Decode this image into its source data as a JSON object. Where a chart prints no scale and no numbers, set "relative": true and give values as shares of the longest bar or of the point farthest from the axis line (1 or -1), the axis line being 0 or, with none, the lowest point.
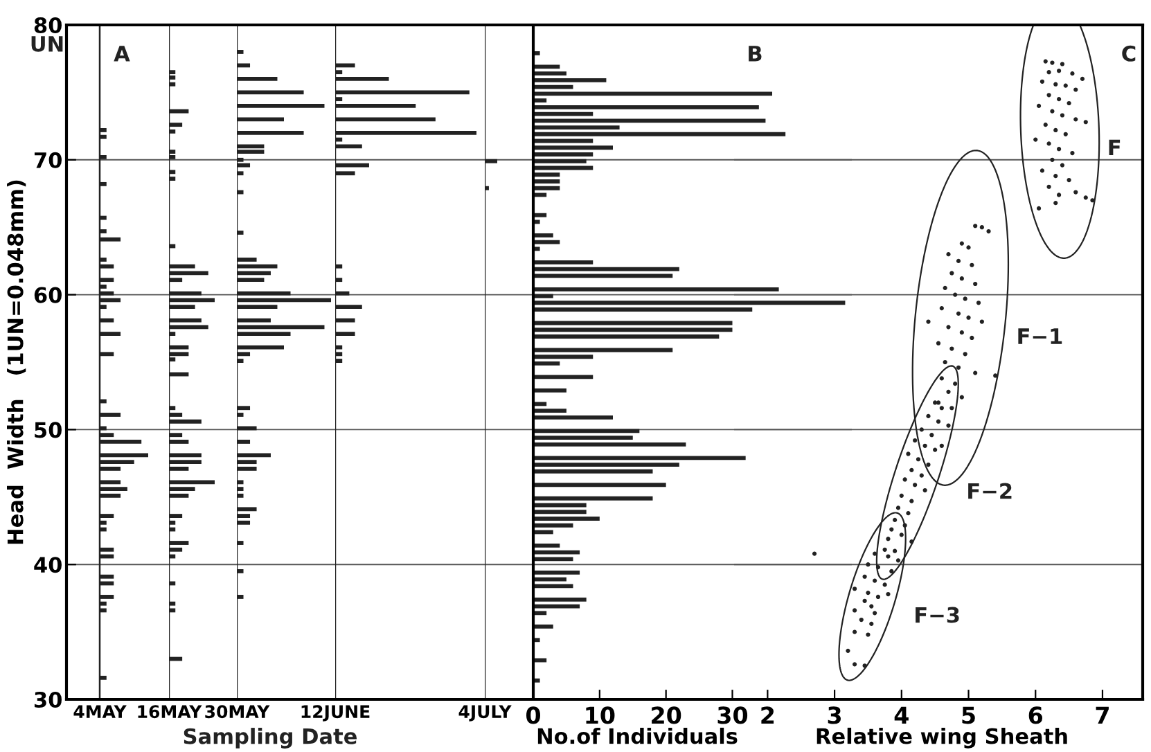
{
  "chart_data": [
    {
      "type": "bar",
      "orientation": "horizontal",
      "relative": true,
      "color": "#222222",
      "xlabel": "4MAY",
      "ylabel": "Head  Width   (1UN=0.048mm)",
      "ylim": [
        30,
        80
      ],
      "yticks": [
        30,
        40,
        50,
        60,
        70,
        80
      ],
      "grid": "y",
      "tick_labels": "y",
      "annotations": [
        "A",
        "Sampling Date",
        "UN"
      ],
      "x": [
        72.2,
        71.7,
        70.2,
        68.2,
        65.7,
        64.7,
        64.1,
        62.6,
        62.1,
        61.1,
        60.6,
        60.1,
        59.6,
        59.1,
        58.1,
        57.1,
        55.6,
        52.1,
        51.1,
        50.1,
        49.6,
        49.1,
        48.1,
        47.6,
        47.1,
        46.1,
        45.6,
        45.1,
        43.6,
        43.1,
        42.6,
        41.1,
        40.6,
        39.1,
        38.6,
        37.6,
        37.1,
        36.6,
        31.6
      ],
      "values": [
        0.14,
        0.14,
        0.14,
        0.14,
        0.14,
        0.14,
        0.43,
        0.14,
        0.29,
        0.29,
        0.14,
        0.29,
        0.43,
        0.14,
        0.29,
        0.43,
        0.29,
        0.14,
        0.43,
        0.14,
        0.29,
        0.86,
        1,
        0.71,
        0.43,
        0.43,
        0.57,
        0.43,
        0.29,
        0.14,
        0.14,
        0.29,
        0.29,
        0.29,
        0.29,
        0.29,
        0.14,
        0.14,
        0.14
      ]
    },
    {
      "type": "bar",
      "orientation": "horizontal",
      "relative": true,
      "color": "#222222",
      "xlabel": "16MAY",
      "ylim": [
        30,
        80
      ],
      "yticks": [
        30,
        40,
        50,
        60,
        70,
        80
      ],
      "grid": "y",
      "tick_labels": false,
      "x": [
        76.5,
        76.1,
        75.6,
        73.6,
        72.6,
        72.1,
        70.6,
        70.2,
        69.1,
        68.6,
        63.6,
        62.1,
        61.6,
        61.1,
        60.1,
        59.6,
        59.1,
        58.1,
        57.6,
        57.1,
        56.1,
        55.6,
        55.2,
        54.1,
        51.6,
        51.1,
        50.6,
        49.6,
        49.1,
        48.1,
        47.6,
        47.1,
        46.1,
        45.6,
        45.1,
        43.6,
        43.1,
        42.6,
        41.6,
        41.1,
        40.6,
        38.6,
        37.1,
        36.6,
        33.0
      ],
      "values": [
        0.14,
        0.14,
        0.14,
        0.43,
        0.29,
        0.14,
        0.14,
        0.14,
        0.14,
        0.14,
        0.14,
        0.57,
        0.86,
        0.29,
        0.71,
        1,
        0.57,
        0.71,
        0.86,
        0.14,
        0.43,
        0.43,
        0.14,
        0.43,
        0.14,
        0.29,
        0.71,
        0.29,
        0.43,
        0.71,
        0.71,
        0.43,
        1,
        0.57,
        0.43,
        0.29,
        0.14,
        0.14,
        0.43,
        0.29,
        0.14,
        0.14,
        0.14,
        0.14,
        0.29
      ]
    },
    {
      "type": "bar",
      "orientation": "horizontal",
      "relative": true,
      "color": "#222222",
      "xlabel": "30MAY",
      "ylim": [
        30,
        80
      ],
      "yticks": [
        30,
        40,
        50,
        60,
        70,
        80
      ],
      "grid": "y",
      "tick_labels": false,
      "x": [
        78.0,
        77.0,
        76.0,
        75.0,
        74.0,
        73.0,
        72.0,
        71.0,
        70.6,
        70.0,
        69.6,
        69.0,
        67.6,
        64.6,
        62.6,
        62.1,
        61.6,
        61.1,
        60.1,
        59.6,
        59.1,
        58.1,
        57.6,
        57.1,
        56.1,
        55.6,
        55.1,
        51.6,
        51.1,
        50.1,
        49.1,
        48.1,
        47.6,
        47.1,
        46.1,
        45.6,
        45.1,
        44.1,
        43.6,
        43.1,
        41.6,
        39.5,
        37.6
      ],
      "values": [
        0.07,
        0.14,
        0.43,
        0.71,
        0.93,
        0.5,
        0.71,
        0.29,
        0.29,
        0.07,
        0.14,
        0.07,
        0.07,
        0.07,
        0.21,
        0.43,
        0.36,
        0.29,
        0.57,
        1,
        0.43,
        0.36,
        0.93,
        0.57,
        0.5,
        0.14,
        0.07,
        0.14,
        0.07,
        0.21,
        0.14,
        0.36,
        0.21,
        0.21,
        0.07,
        0.07,
        0.07,
        0.21,
        0.14,
        0.14,
        0.07,
        0.07,
        0.07
      ]
    },
    {
      "type": "bar",
      "orientation": "horizontal",
      "relative": true,
      "color": "#222222",
      "xlabel": "12JUNE",
      "ylim": [
        30,
        80
      ],
      "yticks": [
        30,
        40,
        50,
        60,
        70,
        80
      ],
      "grid": "y",
      "tick_labels": false,
      "x": [
        77.0,
        76.5,
        76.0,
        75.0,
        74.5,
        74.0,
        73.0,
        72.0,
        71.5,
        71.0,
        69.6,
        69.0,
        62.1,
        61.1,
        60.1,
        59.1,
        58.1,
        57.1,
        56.1,
        55.6,
        55.1
      ],
      "values": [
        0.14,
        0.05,
        0.38,
        0.95,
        0.05,
        0.57,
        0.71,
        1,
        0.05,
        0.19,
        0.24,
        0.14,
        0.05,
        0.05,
        0.1,
        0.19,
        0.14,
        0.14,
        0.05,
        0.05,
        0.05
      ]
    },
    {
      "type": "bar",
      "orientation": "horizontal",
      "relative": true,
      "color": "#222222",
      "xlabel": "4JULY",
      "ylim": [
        30,
        80
      ],
      "yticks": [
        30,
        40,
        50,
        60,
        70,
        80
      ],
      "grid": "y",
      "tick_labels": false,
      "x": [
        69.9,
        67.9
      ],
      "values": [
        1,
        0.33
      ]
    },
    {
      "type": "bar",
      "orientation": "horizontal",
      "color": "#222222",
      "xlabel": "No.of Individuals",
      "xlim": [
        0,
        48
      ],
      "xticks": [
        0,
        10,
        20,
        30
      ],
      "ylim": [
        30,
        80
      ],
      "yticks": [
        30,
        40,
        50,
        60,
        70,
        80
      ],
      "grid": "y",
      "tick_labels": "x",
      "annotations": [
        "B"
      ],
      "x": [
        77.9,
        76.9,
        76.4,
        75.9,
        75.4,
        74.9,
        74.4,
        73.9,
        73.4,
        72.9,
        72.4,
        71.9,
        71.4,
        70.9,
        70.4,
        69.9,
        69.4,
        68.9,
        68.4,
        67.9,
        67.4,
        65.9,
        65.4,
        64.4,
        63.9,
        63.4,
        62.4,
        61.9,
        61.4,
        60.4,
        59.9,
        59.4,
        58.9,
        57.9,
        57.4,
        56.9,
        55.9,
        55.4,
        54.9,
        53.9,
        52.9,
        51.9,
        51.4,
        50.9,
        49.9,
        49.4,
        48.9,
        47.9,
        47.4,
        46.9,
        45.9,
        44.9,
        44.4,
        43.9,
        43.4,
        42.9,
        42.4,
        41.4,
        40.9,
        40.4,
        39.4,
        38.9,
        38.4,
        37.4,
        36.9,
        36.4,
        35.4,
        34.4,
        32.9,
        31.4
      ],
      "values": [
        1,
        4,
        5,
        11,
        6,
        36,
        2,
        34,
        9,
        35,
        13,
        38,
        9,
        12,
        9,
        8,
        9,
        4,
        4,
        4,
        2,
        2,
        1,
        3,
        4,
        1,
        9,
        22,
        21,
        37,
        3,
        47,
        33,
        30,
        30,
        28,
        21,
        9,
        4,
        9,
        5,
        2,
        5,
        12,
        16,
        15,
        23,
        32,
        22,
        18,
        20,
        18,
        8,
        8,
        10,
        6,
        3,
        4,
        7,
        6,
        7,
        5,
        6,
        8,
        7,
        2,
        3,
        1,
        2,
        1
      ]
    },
    {
      "type": "scatter",
      "marker": "circle",
      "xlabel": "Relative wing Sheath",
      "xlim": [
        1.5,
        7.6
      ],
      "xticks": [
        2,
        3,
        4,
        5,
        6,
        7
      ],
      "ylim": [
        30,
        80
      ],
      "yticks": [
        30,
        40,
        50,
        60,
        70,
        80
      ],
      "grid": "y",
      "tick_labels": "x",
      "annotations": [
        "C"
      ],
      "series": [
        {
          "name": "F",
          "color": "#222222",
          "x": [
            6.15,
            6.25,
            6.4,
            6.2,
            6.35,
            6.55,
            6.7,
            6.1,
            6.3,
            6.45,
            6.6,
            6.2,
            6.35,
            6.5,
            6.05,
            6.25,
            6.4,
            6.6,
            6.75,
            6.15,
            6.3,
            6.45,
            6.0,
            6.2,
            6.35,
            6.55,
            6.25,
            6.4,
            6.1,
            6.3,
            6.5,
            6.2,
            6.35,
            6.6,
            6.75,
            6.3,
            6.05,
            6.85
          ],
          "values": [
            77.3,
            77.2,
            77.1,
            76.5,
            76.6,
            76.4,
            76.0,
            75.8,
            75.6,
            75.5,
            75.2,
            74.8,
            74.5,
            74.2,
            74.0,
            73.6,
            73.3,
            73.0,
            72.8,
            72.6,
            72.2,
            71.9,
            71.5,
            71.2,
            70.8,
            70.5,
            70.0,
            69.6,
            69.2,
            68.8,
            68.5,
            68.0,
            67.4,
            67.6,
            67.2,
            66.8,
            66.4,
            67.0
          ]
        },
        {
          "name": "F−1",
          "color": "#222222",
          "x": [
            5.1,
            5.2,
            5.3,
            4.9,
            5.0,
            4.7,
            4.85,
            5.05,
            4.75,
            4.9,
            5.1,
            4.65,
            4.8,
            4.95,
            5.15,
            4.6,
            4.85,
            5.0,
            5.2,
            4.7,
            4.9,
            5.05,
            4.55,
            4.75,
            4.95,
            4.65,
            4.85,
            5.1,
            4.6,
            4.8,
            5.4,
            4.7,
            4.9,
            4.55,
            4.75,
            4.4
          ],
          "values": [
            65.1,
            65.0,
            64.7,
            63.8,
            63.5,
            63.0,
            62.5,
            62.2,
            61.6,
            61.2,
            60.8,
            60.5,
            60.0,
            59.7,
            59.4,
            59.0,
            58.6,
            58.3,
            58.0,
            57.6,
            57.2,
            56.8,
            56.4,
            56.0,
            55.6,
            55.0,
            54.6,
            54.2,
            53.8,
            53.4,
            54.0,
            52.8,
            52.4,
            52.0,
            51.6,
            58.0
          ]
        },
        {
          "name": "F−2",
          "color": "#222222",
          "x": [
            4.5,
            4.6,
            4.4,
            4.55,
            4.7,
            4.3,
            4.45,
            4.2,
            4.35,
            4.5,
            4.1,
            4.25,
            4.4,
            4.15,
            4.3,
            4.05,
            4.2,
            4.35,
            4.0,
            4.15,
            3.95,
            4.1,
            3.9,
            4.05,
            3.85,
            4.0,
            3.8,
            4.15,
            4.6
          ],
          "values": [
            52.0,
            51.6,
            51.0,
            50.6,
            50.3,
            50.0,
            49.6,
            49.2,
            48.8,
            48.5,
            48.2,
            47.8,
            47.4,
            47.0,
            46.6,
            46.3,
            45.9,
            45.5,
            45.1,
            44.7,
            44.2,
            43.8,
            43.3,
            42.9,
            42.6,
            42.2,
            41.9,
            41.7,
            48.8
          ]
        },
        {
          "name": "F−3",
          "color": "#222222",
          "x": [
            3.75,
            3.9,
            3.6,
            3.8,
            3.95,
            3.5,
            3.65,
            3.85,
            3.45,
            3.6,
            3.75,
            3.3,
            3.5,
            3.65,
            3.8,
            3.45,
            3.55,
            3.3,
            3.6,
            3.4,
            3.55,
            3.3,
            3.5,
            3.2,
            3.3,
            3.45
          ],
          "values": [
            41.1,
            41.0,
            40.8,
            40.6,
            40.3,
            40.0,
            39.8,
            39.5,
            39.1,
            38.8,
            38.5,
            38.2,
            37.9,
            37.6,
            37.8,
            37.3,
            36.9,
            36.6,
            36.4,
            35.9,
            35.6,
            35.0,
            34.8,
            33.6,
            32.6,
            32.5
          ]
        },
        {
          "color": "#222222",
          "x": [
            2.7
          ],
          "values": [
            40.8
          ]
        }
      ]
    }
  ]
}
